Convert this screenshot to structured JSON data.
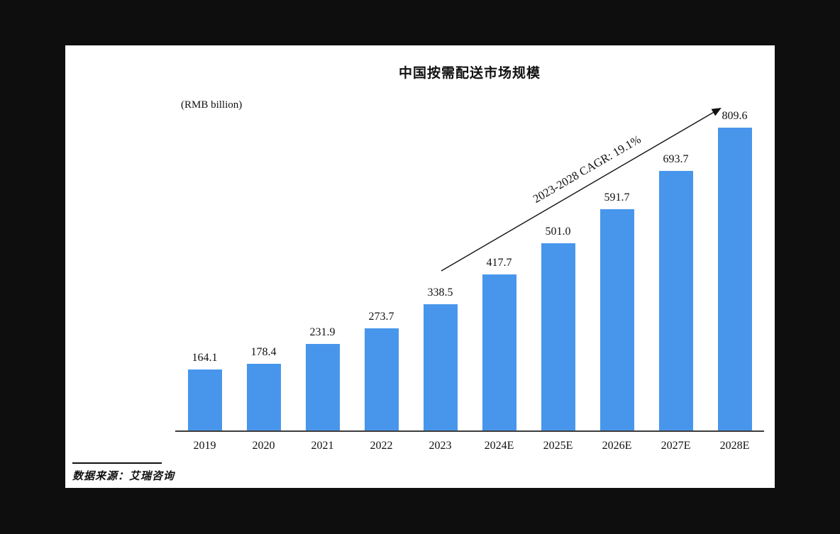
{
  "window": {
    "background_color": "#0e0e0e",
    "panel_color": "#ffffff"
  },
  "chart_data": {
    "type": "bar",
    "title": "中国按需配送市场规模",
    "unit_label": "(RMB billion)",
    "categories": [
      "2019",
      "2020",
      "2021",
      "2022",
      "2023",
      "2024E",
      "2025E",
      "2026E",
      "2027E",
      "2028E"
    ],
    "values": [
      164.1,
      178.4,
      231.9,
      273.7,
      338.5,
      417.7,
      501.0,
      591.7,
      693.7,
      809.6
    ],
    "value_labels": [
      "164.1",
      "178.4",
      "231.9",
      "273.7",
      "338.5",
      "417.7",
      "501.0",
      "591.7",
      "693.7",
      "809.6"
    ],
    "annotation_label": "2023-2028 CAGR: 19.1%",
    "source_label": "数据来源：艾瑞咨询",
    "bar_color": "#4896ec",
    "axis_color": "#3d3d3d",
    "text_color": "#111111",
    "ylim": [
      0,
      850
    ],
    "xlabel": "",
    "ylabel": "(RMB billion)",
    "grid": false,
    "legend": false
  }
}
